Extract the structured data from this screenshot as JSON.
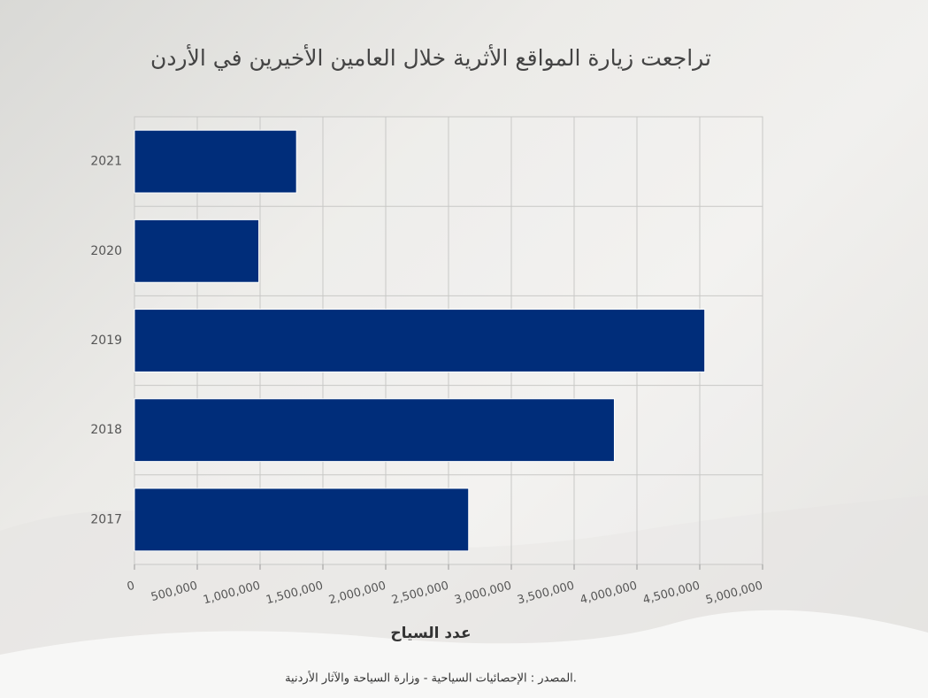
{
  "chart_data": {
    "type": "hbar",
    "title": "تراجعت زيارة المواقع الأثرية خلال العامين الأخيرين في الأردن",
    "x_label": "عدد السياح",
    "source": "المصدر : الإحصائيات السياحية - وزارة السياحة والآثار الأردنية.",
    "categories": [
      "2021",
      "2020",
      "2019",
      "2018",
      "2017"
    ],
    "values": [
      1290000,
      990000,
      4540000,
      3820000,
      2660000
    ],
    "color": "#002d7a",
    "xlim": [
      0,
      5000000
    ],
    "xticks": [
      0,
      {
        "value": 500000,
        "label": "500,000"
      },
      {
        "value": 1000000,
        "label": "1,000,000"
      },
      {
        "value": 1500000,
        "label": "1,500,000"
      },
      {
        "value": 2000000,
        "label": "2,000,000"
      },
      {
        "value": 2500000,
        "label": "2,500,000"
      },
      {
        "value": 3000000,
        "label": "3,000,000"
      },
      {
        "value": 3500000,
        "label": "3,500,000"
      },
      {
        "value": 4000000,
        "label": "4,000,000"
      },
      {
        "value": 4500000,
        "label": "4,500,000"
      },
      {
        "value": 5000000,
        "label": "5,000,000"
      }
    ],
    "grid": true
  }
}
